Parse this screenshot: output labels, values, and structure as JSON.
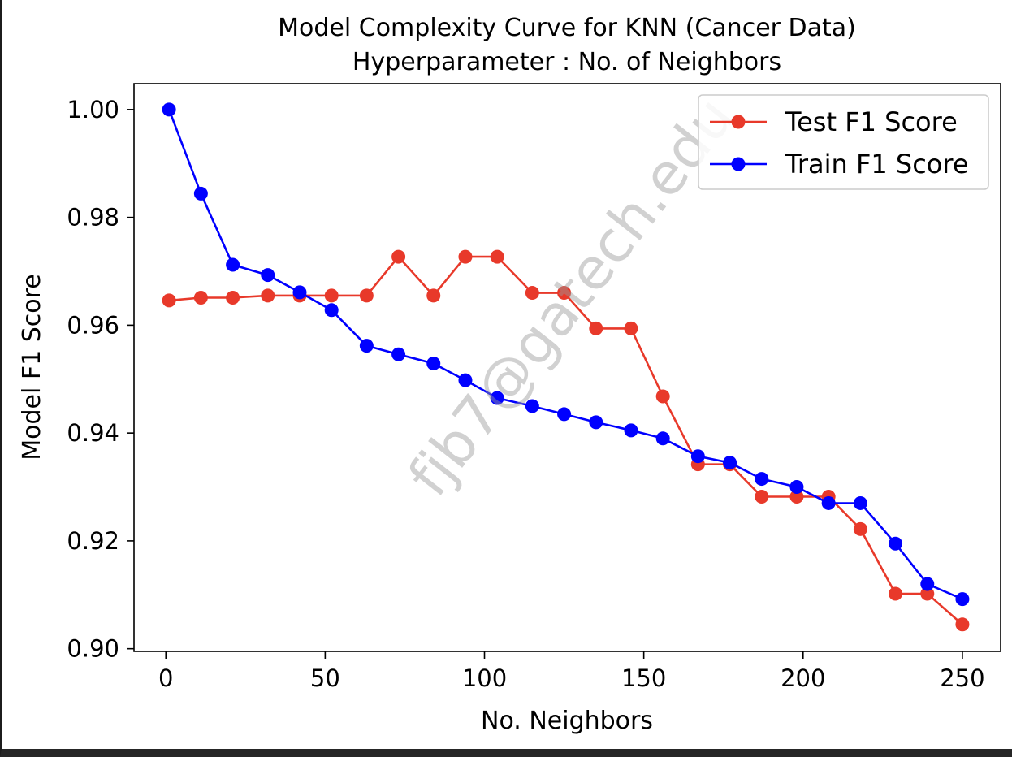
{
  "chart_data": {
    "type": "line",
    "title": "Model Complexity Curve for KNN (Cancer Data)",
    "subtitle": "Hyperparameter : No. of Neighbors",
    "xlabel": "No. Neighbors",
    "ylabel": "Model F1 Score",
    "xlim": [
      -10,
      262
    ],
    "ylim": [
      0.8995,
      1.0048
    ],
    "xticks": [
      0,
      50,
      100,
      150,
      200,
      250
    ],
    "xtick_labels": [
      "0",
      "50",
      "100",
      "150",
      "200",
      "250"
    ],
    "yticks": [
      0.9,
      0.92,
      0.94,
      0.96,
      0.98,
      1.0
    ],
    "ytick_labels": [
      "0.90",
      "0.92",
      "0.94",
      "0.96",
      "0.98",
      "1.00"
    ],
    "grid": false,
    "legend_position": "top-right",
    "x": [
      1,
      11,
      21,
      32,
      42,
      52,
      63,
      73,
      84,
      94,
      104,
      115,
      125,
      135,
      146,
      156,
      167,
      177,
      187,
      198,
      208,
      218,
      229,
      239,
      250
    ],
    "series": [
      {
        "name": "Test F1 Score",
        "color": "#e8392a",
        "marker": "circle",
        "values": [
          0.9646,
          0.9651,
          0.9651,
          0.9655,
          0.9655,
          0.9655,
          0.9655,
          0.9727,
          0.9655,
          0.9727,
          0.9727,
          0.966,
          0.966,
          0.9594,
          0.9594,
          0.9468,
          0.9342,
          0.9342,
          0.9282,
          0.9282,
          0.9282,
          0.9222,
          0.9102,
          0.9102,
          0.9045
        ]
      },
      {
        "name": "Train F1 Score",
        "color": "#0000ff",
        "marker": "circle",
        "values": [
          1.0,
          0.9844,
          0.9712,
          0.9693,
          0.9661,
          0.9628,
          0.9562,
          0.9546,
          0.9529,
          0.9498,
          0.9465,
          0.945,
          0.9435,
          0.942,
          0.9405,
          0.939,
          0.9357,
          0.9345,
          0.9315,
          0.93,
          0.927,
          0.927,
          0.9195,
          0.912,
          0.9092
        ]
      }
    ]
  },
  "watermark": "fjb7@gatech.edu"
}
